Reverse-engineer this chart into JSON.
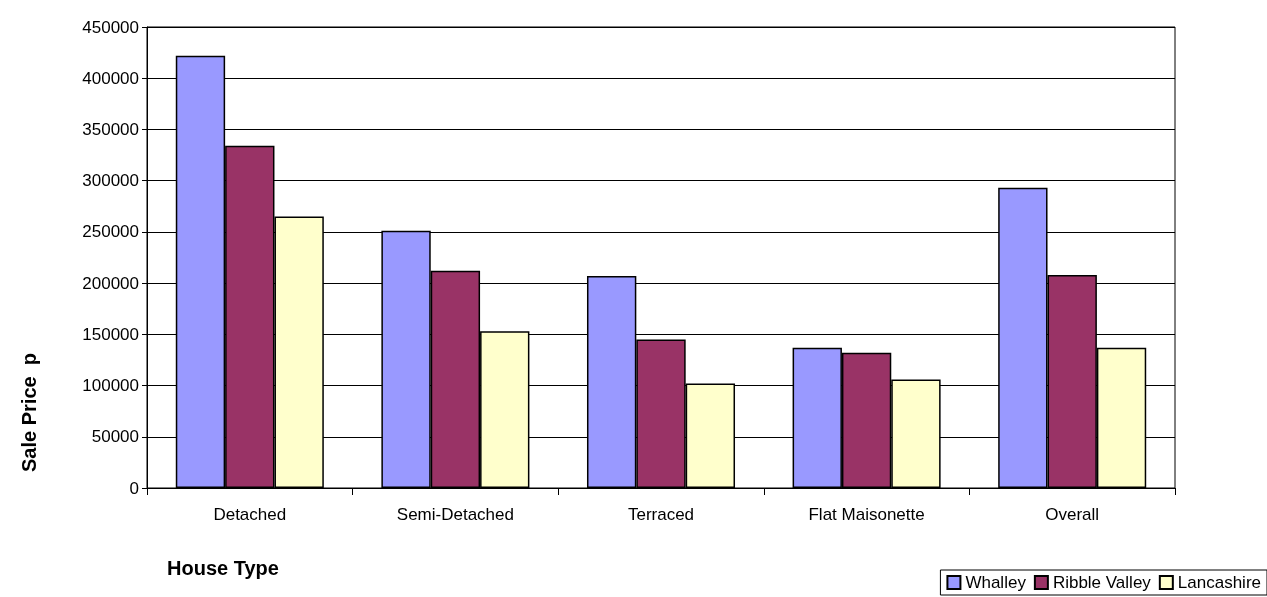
{
  "chart_data": {
    "type": "bar",
    "xlabel": "House Type",
    "ylabel": "Sale Price  p",
    "categories": [
      "Detached",
      "Semi-Detached",
      "Terraced",
      "Flat Maisonette",
      "Overall"
    ],
    "series": [
      {
        "name": "Whalley",
        "color": "#9999ff",
        "values": [
          422000,
          251000,
          207000,
          137000,
          293000
        ]
      },
      {
        "name": "Ribble Valley",
        "color": "#993366",
        "values": [
          334000,
          212000,
          145000,
          132000,
          208000
        ]
      },
      {
        "name": "Lancashire",
        "color": "#ffffcc",
        "values": [
          265000,
          153000,
          102000,
          106000,
          137000
        ]
      }
    ],
    "ylim": [
      0,
      450000
    ],
    "yticks": [
      0,
      50000,
      100000,
      150000,
      200000,
      250000,
      300000,
      350000,
      400000,
      450000
    ],
    "grid": "y",
    "legend": "bottom right"
  }
}
